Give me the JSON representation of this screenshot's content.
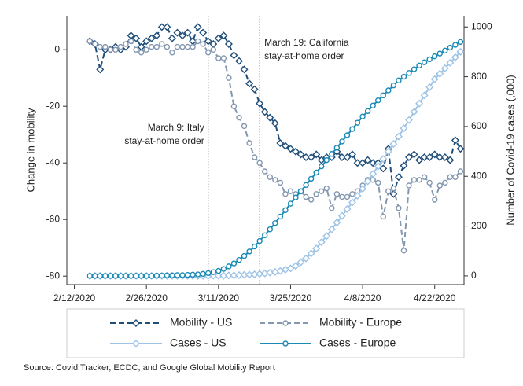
{
  "chart_data": {
    "type": "line",
    "y_label": "Change in mobility",
    "y2_label": "Number of Covid-19 cases (,000)",
    "source": "Source: Covid Tracker, ECDC, and Google Global Mobility Report",
    "xlim": [
      "2/11/2020",
      "4/28/2020"
    ],
    "xticks": [
      "2/12/2020",
      "2/26/2020",
      "3/11/2020",
      "3/25/2020",
      "4/8/2020",
      "4/22/2020"
    ],
    "ylim": [
      -83,
      12
    ],
    "yticks": [
      0,
      -20,
      -40,
      -60,
      -80
    ],
    "y2lim": [
      -35,
      1045
    ],
    "y2ticks": [
      0,
      200,
      400,
      600,
      800,
      1000
    ],
    "annotations": [
      {
        "x": "3/9/2020",
        "lines": [
          "March 9: Italy",
          "stay-at-home order"
        ]
      },
      {
        "x": "3/19/2020",
        "lines": [
          "March 19: California",
          "stay-at-home order"
        ]
      }
    ],
    "x": [
      "2/15/2020",
      "2/16/2020",
      "2/17/2020",
      "2/18/2020",
      "2/19/2020",
      "2/20/2020",
      "2/21/2020",
      "2/22/2020",
      "2/23/2020",
      "2/24/2020",
      "2/25/2020",
      "2/26/2020",
      "2/27/2020",
      "2/28/2020",
      "2/29/2020",
      "3/1/2020",
      "3/2/2020",
      "3/3/2020",
      "3/4/2020",
      "3/5/2020",
      "3/6/2020",
      "3/7/2020",
      "3/8/2020",
      "3/9/2020",
      "3/10/2020",
      "3/11/2020",
      "3/12/2020",
      "3/13/2020",
      "3/14/2020",
      "3/15/2020",
      "3/16/2020",
      "3/17/2020",
      "3/18/2020",
      "3/19/2020",
      "3/20/2020",
      "3/21/2020",
      "3/22/2020",
      "3/23/2020",
      "3/24/2020",
      "3/25/2020",
      "3/26/2020",
      "3/27/2020",
      "3/28/2020",
      "3/29/2020",
      "3/30/2020",
      "3/31/2020",
      "4/1/2020",
      "4/2/2020",
      "4/3/2020",
      "4/4/2020",
      "4/5/2020",
      "4/6/2020",
      "4/7/2020",
      "4/8/2020",
      "4/9/2020",
      "4/10/2020",
      "4/11/2020",
      "4/12/2020",
      "4/13/2020",
      "4/14/2020",
      "4/15/2020",
      "4/16/2020",
      "4/17/2020",
      "4/18/2020",
      "4/19/2020",
      "4/20/2020",
      "4/21/2020",
      "4/22/2020",
      "4/23/2020",
      "4/24/2020",
      "4/25/2020",
      "4/26/2020",
      "4/27/2020"
    ],
    "series": [
      {
        "name": "Mobility - US",
        "color": "#1f4e79",
        "marker": "diamond",
        "dashed": true,
        "axis": "y",
        "values": [
          3,
          2,
          -7,
          0,
          0,
          1,
          0,
          1,
          5,
          4,
          1,
          3,
          4,
          5,
          8,
          8,
          4,
          6,
          5,
          6,
          3,
          8,
          6,
          3,
          2,
          4,
          5,
          2,
          -2,
          -4,
          -7,
          -12,
          -14,
          -19,
          -22,
          -24,
          -26,
          -33,
          -34,
          -35,
          -36,
          -37,
          -38,
          -38,
          -37,
          -39,
          -38,
          -38,
          -36,
          -38,
          -38,
          -37,
          -40,
          -40,
          -39,
          -40,
          -40,
          -42,
          -35,
          -51,
          -45,
          -41,
          -38,
          -37,
          -39,
          -38,
          -38,
          -37,
          -38,
          -38,
          -39,
          -32,
          -35
        ]
      },
      {
        "name": "Mobility - Europe",
        "color": "#8497b0",
        "marker": "circle",
        "dashed": true,
        "axis": "y",
        "values": [
          3,
          2,
          1,
          1,
          0,
          0,
          1,
          2,
          3,
          0,
          -1,
          0,
          1,
          1,
          2,
          1,
          -1,
          1,
          1,
          1,
          1,
          3,
          2,
          -1,
          0,
          -3,
          -3,
          -10,
          -20,
          -24,
          -27,
          -33,
          -38,
          -40,
          -43,
          -45,
          -46,
          -47,
          -51,
          -50,
          -51,
          -50,
          -52,
          -53,
          -51,
          -50,
          -49,
          -56,
          -51,
          -52,
          -52,
          -51,
          -50,
          -48,
          -46,
          -46,
          -47,
          -59,
          -50,
          -49,
          -56,
          -71,
          -48,
          -46,
          -46,
          -45,
          -47,
          -53,
          -48,
          -47,
          -45,
          -45,
          -43
        ]
      },
      {
        "name": "Cases - US",
        "color": "#9dc3e6",
        "marker": "diamond",
        "dashed": false,
        "axis": "y2",
        "values": [
          0,
          0,
          0,
          0,
          0,
          0,
          0,
          0,
          0,
          0,
          0,
          0,
          0,
          0,
          0,
          0,
          0,
          0,
          0,
          0,
          0,
          0,
          0,
          0,
          1,
          1,
          1,
          2,
          2,
          3,
          4,
          5,
          6,
          8,
          10,
          13,
          16,
          20,
          25,
          30,
          40,
          55,
          70,
          90,
          110,
          135,
          160,
          187,
          214,
          241,
          268,
          295,
          322,
          350,
          380,
          410,
          440,
          470,
          500,
          530,
          560,
          593,
          626,
          659,
          692,
          725,
          758,
          790,
          812,
          834,
          856,
          878,
          900
        ]
      },
      {
        "name": "Cases - Europe",
        "color": "#1a8ab5",
        "marker": "circle",
        "dashed": false,
        "axis": "y2",
        "values": [
          0,
          0,
          0,
          0,
          0,
          0,
          0,
          0,
          0,
          0,
          0,
          0,
          0,
          1,
          1,
          2,
          2,
          3,
          3,
          4,
          5,
          6,
          8,
          11,
          15,
          20,
          28,
          38,
          50,
          64,
          80,
          98,
          118,
          140,
          163,
          187,
          212,
          238,
          264,
          290,
          315,
          340,
          365,
          390,
          415,
          440,
          465,
          490,
          515,
          540,
          565,
          590,
          615,
          640,
          662,
          684,
          705,
          725,
          745,
          765,
          785,
          800,
          815,
          830,
          845,
          858,
          870,
          882,
          893,
          905,
          917,
          928,
          940
        ]
      }
    ]
  }
}
